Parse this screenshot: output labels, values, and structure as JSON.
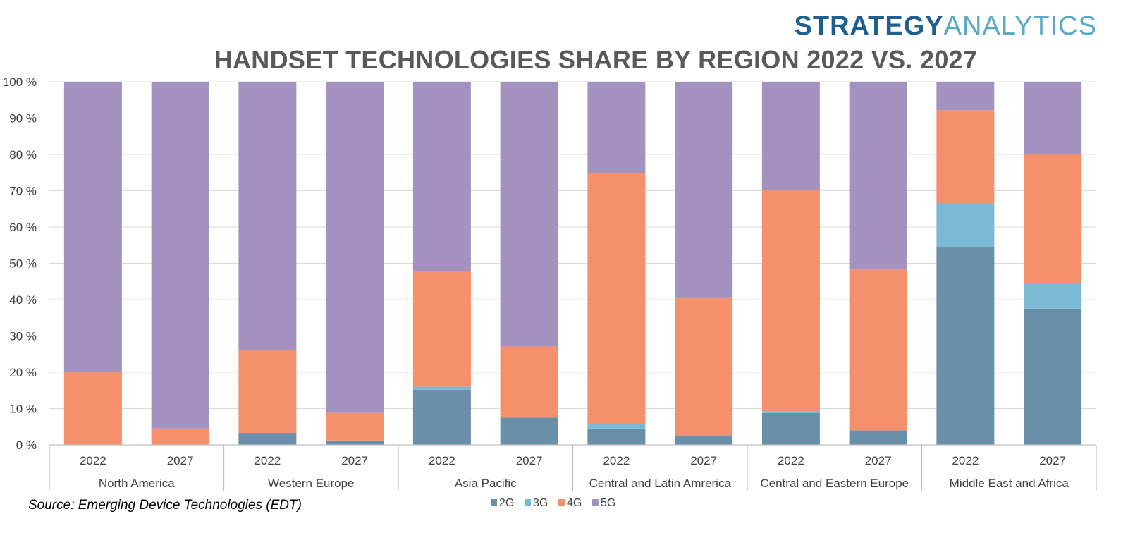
{
  "brand": {
    "part1": "STRATEGY",
    "part2": "ANALYTICS"
  },
  "source": "Source: Emerging Device Technologies (EDT)",
  "chart_data": {
    "type": "bar",
    "stacked": true,
    "title": "HANDSET TECHNOLOGIES SHARE BY REGION 2022 VS. 2027",
    "ylim": [
      0,
      100
    ],
    "yticks": [
      "0 %",
      "10 %",
      "20 %",
      "30 %",
      "40 %",
      "50 %",
      "60 %",
      "70 %",
      "80 %",
      "90 %",
      "100 %"
    ],
    "grid": true,
    "legend_position": "bottom",
    "groups": [
      "North America",
      "Western Europe",
      "Asia Pacific",
      "Central and Latin Amrerica",
      "Central and Eastern Europe",
      "Middle East and Africa"
    ],
    "categories": [
      "2022",
      "2027",
      "2022",
      "2027",
      "2022",
      "2027",
      "2022",
      "2027",
      "2022",
      "2027",
      "2022",
      "2027"
    ],
    "series": [
      {
        "name": "2G",
        "color": "#6a8fa8",
        "values": [
          0,
          0,
          3.3,
          1.2,
          15.2,
          7.5,
          4.5,
          2.6,
          8.8,
          4.0,
          54.5,
          37.5
        ]
      },
      {
        "name": "3G",
        "color": "#7bbad6",
        "values": [
          0,
          0,
          0,
          0,
          0.8,
          0,
          1.2,
          0,
          0.5,
          0,
          12.0,
          7.0
        ]
      },
      {
        "name": "4G",
        "color": "#f4916c",
        "values": [
          20.0,
          4.5,
          22.9,
          7.6,
          31.8,
          19.6,
          69.1,
          38.0,
          60.9,
          44.3,
          25.7,
          35.5
        ]
      },
      {
        "name": "5G",
        "color": "#a391bf",
        "values": [
          80.0,
          95.5,
          73.8,
          91.2,
          52.2,
          72.9,
          25.2,
          59.4,
          29.8,
          51.7,
          7.8,
          20.0
        ]
      }
    ]
  }
}
